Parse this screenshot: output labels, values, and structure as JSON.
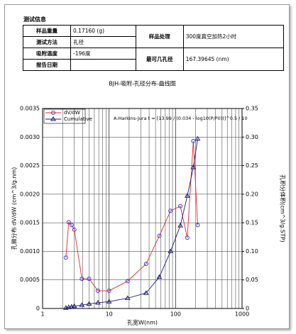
{
  "section_title": "测试信息",
  "table": {
    "rows": [
      [
        "样品重量",
        "0.17160 (g)",
        "样品处理",
        "300度真空加热2小时"
      ],
      [
        "测试方法",
        "孔径"
      ],
      [
        "吸附温度",
        "-196度",
        "最可几孔径",
        "167.39645 (nm)"
      ],
      [
        "报告日期"
      ]
    ]
  },
  "chart_data": {
    "type": "line",
    "title": "BJH-吸附-孔径分布-曲线图",
    "xlabel": "孔宽W(nm)",
    "ylabel": "孔微分布 dV/dW (cm^3/g.nm)",
    "y2label": "孔积分体积(cm^3/g.STP)",
    "annotation": "A:Harkins-Jura t = [13.99 / (0.034 - log10(P/P0))]^0.5 / 10",
    "xscale": "log",
    "xlim": [
      1,
      1000
    ],
    "xticks": [
      1,
      10,
      100,
      1000
    ],
    "ylim": [
      0,
      0.0035
    ],
    "yticks": [
      0,
      0.0005,
      {
        "value": 0.001,
        "label": "0.0010"
      },
      0.0015,
      {
        "value": 0.002,
        "label": "0.0020"
      },
      0.0025,
      {
        "value": 0.003,
        "label": "0.0030"
      },
      0.0035
    ],
    "y2lim": [
      0,
      0.35
    ],
    "y2ticks": [
      0,
      0.05,
      {
        "value": 0.1,
        "label": "0.10"
      },
      0.15,
      {
        "value": 0.2,
        "label": "0.20"
      },
      0.25,
      {
        "value": 0.3,
        "label": "0.30"
      },
      0.35
    ],
    "grid": true,
    "legend": "upper left",
    "x": [
      2.24,
      2.47,
      2.73,
      3.0,
      3.9,
      5.0,
      6.8,
      10,
      19,
      36,
      57,
      84,
      118,
      150,
      185,
      215
    ],
    "series": [
      {
        "name": "dV/dW",
        "color": "#e0282e",
        "marker_color": "#3a3adf",
        "marker": "circle",
        "values": [
          0.00089,
          0.00151,
          0.00146,
          0.00138,
          0.00052,
          0.00052,
          0.00031,
          0.00031,
          0.00048,
          0.00078,
          0.00127,
          0.00171,
          0.00179,
          0.00124,
          0.00293,
          0.00146
        ]
      },
      {
        "name": "Cumulative",
        "color": "#1a1a7a",
        "marker_color": "#1a1a7a",
        "marker": "triangle",
        "axis": "y2",
        "values": [
          0.001,
          0.002,
          0.003,
          0.004,
          0.006,
          0.008,
          0.01,
          0.012,
          0.018,
          0.027,
          0.055,
          0.1,
          0.145,
          0.197,
          0.247,
          0.297
        ]
      }
    ]
  }
}
